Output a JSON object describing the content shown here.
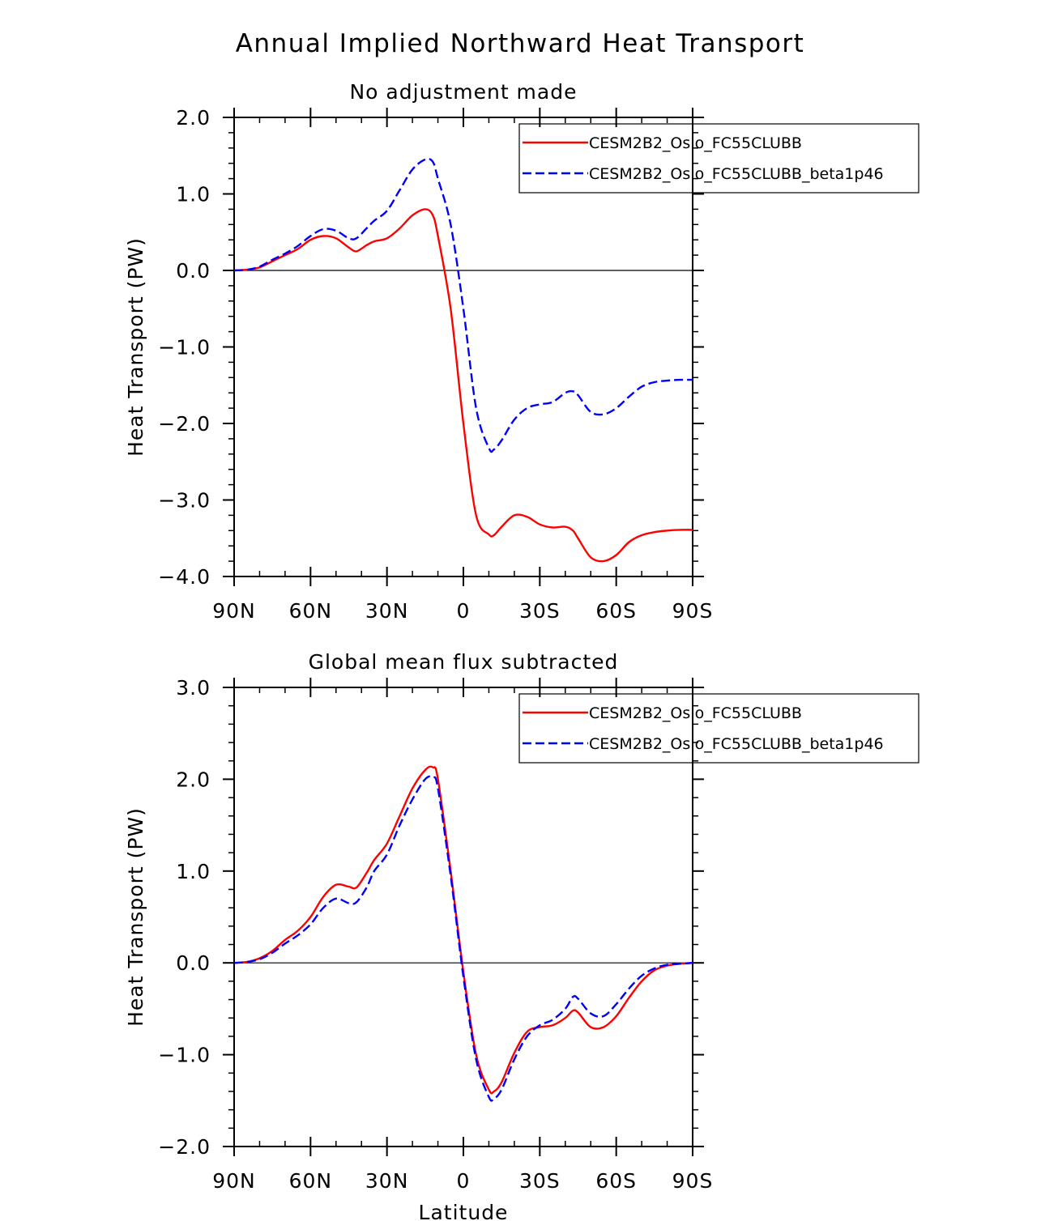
{
  "title": "Annual Implied Northward Heat Transport",
  "chart_data": [
    {
      "type": "line",
      "title": "No adjustment made",
      "xlabel": "",
      "ylabel": "Heat Transport (PW)",
      "xlim": [
        90,
        -90
      ],
      "ylim": [
        -4.0,
        2.0
      ],
      "x_ticks": [
        90,
        60,
        30,
        0,
        -30,
        -60,
        -90
      ],
      "x_tick_labels": [
        "90N",
        "60N",
        "30N",
        "0",
        "30S",
        "60S",
        "90S"
      ],
      "y_ticks": [
        2.0,
        1.0,
        0.0,
        -1.0,
        -2.0,
        -3.0,
        -4.0
      ],
      "y_tick_labels": [
        "2.0",
        "1.0",
        "0.0",
        "−1.0",
        "−2.0",
        "−3.0",
        "−4.0"
      ],
      "x": [
        90,
        85,
        80,
        75,
        70,
        65,
        60,
        55,
        50,
        45,
        42,
        38,
        35,
        30,
        25,
        20,
        15,
        12,
        10,
        5,
        0,
        -5,
        -10,
        -12,
        -15,
        -20,
        -25,
        -30,
        -35,
        -40,
        -43,
        -45,
        -50,
        -55,
        -60,
        -65,
        -70,
        -75,
        -80,
        -85,
        -90
      ],
      "series": [
        {
          "name": "CESM2B2_Oslo_FC55CLUBB",
          "color": "#ff0000",
          "dash": "solid",
          "values": [
            0.0,
            0.01,
            0.04,
            0.12,
            0.2,
            0.28,
            0.4,
            0.45,
            0.42,
            0.3,
            0.25,
            0.33,
            0.38,
            0.42,
            0.55,
            0.72,
            0.8,
            0.72,
            0.45,
            -0.5,
            -2.0,
            -3.2,
            -3.45,
            -3.46,
            -3.35,
            -3.2,
            -3.22,
            -3.32,
            -3.36,
            -3.35,
            -3.4,
            -3.5,
            -3.75,
            -3.8,
            -3.72,
            -3.55,
            -3.46,
            -3.42,
            -3.4,
            -3.39,
            -3.39
          ]
        },
        {
          "name": "CESM2B2_Oslo_FC55CLUBB_beta1p46",
          "color": "#0000ff",
          "dash": "dashed",
          "values": [
            0.0,
            0.01,
            0.05,
            0.14,
            0.22,
            0.32,
            0.45,
            0.54,
            0.52,
            0.42,
            0.42,
            0.55,
            0.65,
            0.78,
            1.05,
            1.32,
            1.45,
            1.42,
            1.2,
            0.6,
            -0.5,
            -1.8,
            -2.32,
            -2.34,
            -2.22,
            -1.95,
            -1.8,
            -1.75,
            -1.72,
            -1.6,
            -1.58,
            -1.63,
            -1.85,
            -1.88,
            -1.8,
            -1.65,
            -1.52,
            -1.46,
            -1.44,
            -1.43,
            -1.43
          ]
        }
      ],
      "legend_location": "top-right"
    },
    {
      "type": "line",
      "title": "Global mean flux subtracted",
      "xlabel": "Latitude",
      "ylabel": "Heat Transport (PW)",
      "xlim": [
        90,
        -90
      ],
      "ylim": [
        -2.0,
        3.0
      ],
      "x_ticks": [
        90,
        60,
        30,
        0,
        -30,
        -60,
        -90
      ],
      "x_tick_labels": [
        "90N",
        "60N",
        "30N",
        "0",
        "30S",
        "60S",
        "90S"
      ],
      "y_ticks": [
        3.0,
        2.0,
        1.0,
        0.0,
        -1.0,
        -2.0
      ],
      "y_tick_labels": [
        "3.0",
        "2.0",
        "1.0",
        "0.0",
        "−1.0",
        "−2.0"
      ],
      "x": [
        90,
        85,
        80,
        75,
        70,
        65,
        60,
        55,
        50,
        45,
        42,
        38,
        35,
        30,
        25,
        20,
        15,
        12,
        10,
        5,
        0,
        -5,
        -10,
        -12,
        -15,
        -20,
        -25,
        -30,
        -35,
        -40,
        -43,
        -45,
        -50,
        -55,
        -60,
        -65,
        -70,
        -75,
        -80,
        -85,
        -90
      ],
      "series": [
        {
          "name": "CESM2B2_Oslo_FC55CLUBB",
          "color": "#ff0000",
          "dash": "solid",
          "values": [
            0.0,
            0.01,
            0.05,
            0.13,
            0.25,
            0.35,
            0.5,
            0.72,
            0.85,
            0.83,
            0.82,
            0.98,
            1.12,
            1.3,
            1.6,
            1.9,
            2.1,
            2.13,
            2.0,
            1.0,
            -0.1,
            -1.0,
            -1.38,
            -1.4,
            -1.3,
            -0.98,
            -0.75,
            -0.7,
            -0.68,
            -0.6,
            -0.52,
            -0.54,
            -0.7,
            -0.7,
            -0.58,
            -0.38,
            -0.2,
            -0.08,
            -0.03,
            -0.01,
            0.0
          ]
        },
        {
          "name": "CESM2B2_Oslo_FC55CLUBB_beta1p46",
          "color": "#0000ff",
          "dash": "dashed",
          "values": [
            0.0,
            0.01,
            0.04,
            0.11,
            0.21,
            0.3,
            0.42,
            0.6,
            0.7,
            0.65,
            0.66,
            0.82,
            1.0,
            1.18,
            1.5,
            1.78,
            2.0,
            2.02,
            1.9,
            0.95,
            -0.15,
            -1.05,
            -1.46,
            -1.48,
            -1.38,
            -1.05,
            -0.8,
            -0.68,
            -0.62,
            -0.5,
            -0.37,
            -0.39,
            -0.55,
            -0.58,
            -0.45,
            -0.28,
            -0.14,
            -0.06,
            -0.02,
            -0.01,
            0.0
          ]
        }
      ],
      "legend_location": "top-right"
    }
  ]
}
